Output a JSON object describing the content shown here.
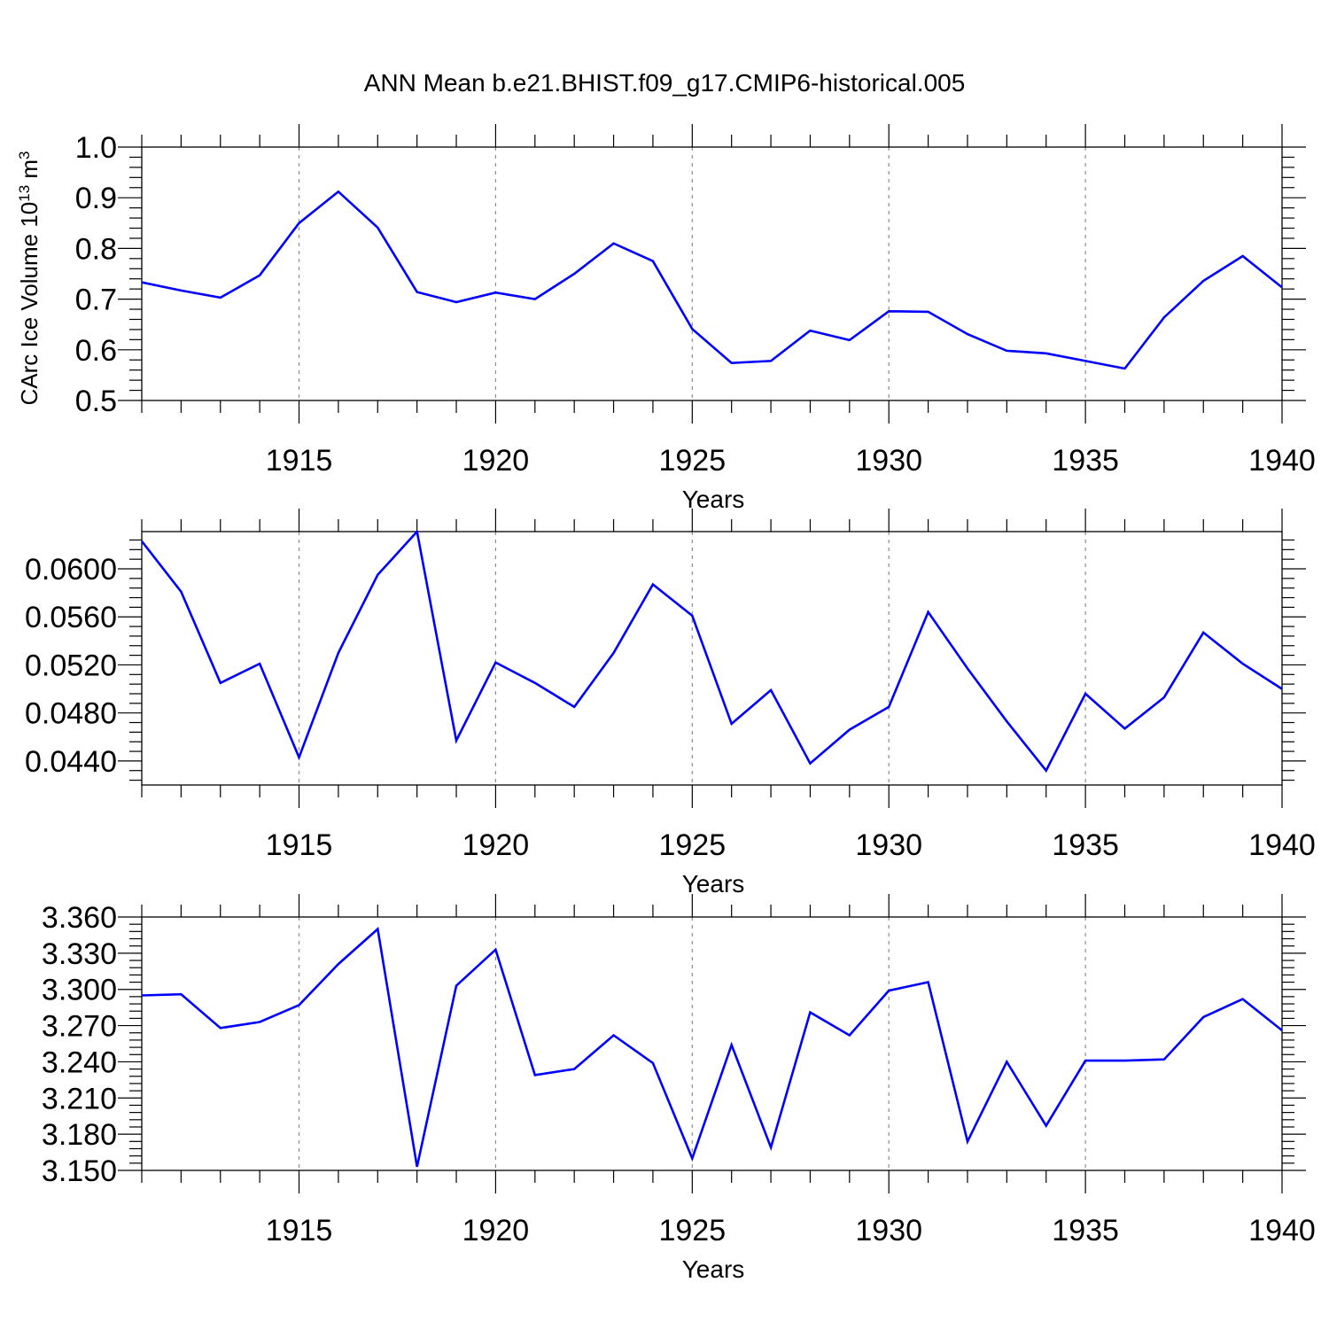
{
  "title": "ANN Mean b.e21.BHIST.f09_g17.CMIP6-historical.005",
  "colors": {
    "line": "#0000ff",
    "axis": "#000000",
    "grid": "#8c8c8c",
    "background": "#ffffff"
  },
  "chart_data": [
    {
      "type": "line",
      "title": "ANN Mean b.e21.BHIST.f09_g17.CMIP6-historical.005",
      "xlabel": "Years",
      "ylabel": "CArc Ice Volume 10^13 m^3",
      "ylabel_parts": {
        "main": "CArc Ice Volume 10",
        "sup1": "13",
        "mid": " m",
        "sup2": "3"
      },
      "xlim": [
        1911,
        1940
      ],
      "ylim": [
        0.5,
        1.0
      ],
      "xticks": [
        1915,
        1920,
        1925,
        1930,
        1935,
        1940
      ],
      "yticks": [
        0.5,
        0.6,
        0.7,
        0.8,
        0.9,
        1.0
      ],
      "ytick_labels": [
        "0.5",
        "0.6",
        "0.7",
        "0.8",
        "0.9",
        "1.0"
      ],
      "grid": "vertical dashed at major x ticks",
      "x": [
        1911,
        1912,
        1913,
        1914,
        1915,
        1916,
        1917,
        1918,
        1919,
        1920,
        1921,
        1922,
        1923,
        1924,
        1925,
        1926,
        1927,
        1928,
        1929,
        1930,
        1931,
        1932,
        1933,
        1934,
        1935,
        1936,
        1937,
        1938,
        1939,
        1940
      ],
      "values": [
        0.733,
        0.717,
        0.703,
        0.747,
        0.85,
        0.912,
        0.841,
        0.714,
        0.694,
        0.713,
        0.7,
        0.75,
        0.81,
        0.775,
        0.641,
        0.574,
        0.578,
        0.638,
        0.619,
        0.676,
        0.675,
        0.631,
        0.598,
        0.593,
        0.578,
        0.563,
        0.664,
        0.736,
        0.785,
        0.723
      ]
    },
    {
      "type": "line",
      "xlabel": "Years",
      "ylabel": "",
      "xlim": [
        1911,
        1940
      ],
      "ylim": [
        0.042,
        0.0631
      ],
      "xticks": [
        1915,
        1920,
        1925,
        1930,
        1935,
        1940
      ],
      "yticks": [
        0.044,
        0.048,
        0.052,
        0.056,
        0.06
      ],
      "ytick_labels": [
        "0.0440",
        "0.0480",
        "0.0520",
        "0.0560",
        "0.0600"
      ],
      "grid": "vertical dashed at major x ticks",
      "x": [
        1911,
        1912,
        1913,
        1914,
        1915,
        1916,
        1917,
        1918,
        1919,
        1920,
        1921,
        1922,
        1923,
        1924,
        1925,
        1926,
        1927,
        1928,
        1929,
        1930,
        1931,
        1932,
        1933,
        1934,
        1935,
        1936,
        1937,
        1938,
        1939,
        1940
      ],
      "values": [
        0.0623,
        0.0581,
        0.0505,
        0.0521,
        0.0443,
        0.053,
        0.0595,
        0.0631,
        0.0457,
        0.0522,
        0.0505,
        0.0485,
        0.053,
        0.0587,
        0.0561,
        0.0471,
        0.0499,
        0.0438,
        0.0466,
        0.0485,
        0.0564,
        0.0517,
        0.0473,
        0.0432,
        0.0496,
        0.0467,
        0.0493,
        0.0547,
        0.0521,
        0.05
      ]
    },
    {
      "type": "line",
      "xlabel": "Years",
      "ylabel": "",
      "xlim": [
        1911,
        1940
      ],
      "ylim": [
        3.15,
        3.36
      ],
      "xticks": [
        1915,
        1920,
        1925,
        1930,
        1935,
        1940
      ],
      "yticks": [
        3.15,
        3.18,
        3.21,
        3.24,
        3.27,
        3.3,
        3.33,
        3.36
      ],
      "ytick_labels": [
        "3.150",
        "3.180",
        "3.210",
        "3.240",
        "3.270",
        "3.300",
        "3.330",
        "3.360"
      ],
      "grid": "vertical dashed at major x ticks",
      "x": [
        1911,
        1912,
        1913,
        1914,
        1915,
        1916,
        1917,
        1918,
        1919,
        1920,
        1921,
        1922,
        1923,
        1924,
        1925,
        1926,
        1927,
        1928,
        1929,
        1930,
        1931,
        1932,
        1933,
        1934,
        1935,
        1936,
        1937,
        1938,
        1939,
        1940
      ],
      "values": [
        3.295,
        3.296,
        3.268,
        3.273,
        3.287,
        3.321,
        3.35,
        3.153,
        3.303,
        3.333,
        3.229,
        3.234,
        3.262,
        3.239,
        3.16,
        3.254,
        3.169,
        3.281,
        3.262,
        3.299,
        3.306,
        3.174,
        3.24,
        3.187,
        3.241,
        3.241,
        3.242,
        3.277,
        3.292,
        3.266
      ]
    }
  ]
}
